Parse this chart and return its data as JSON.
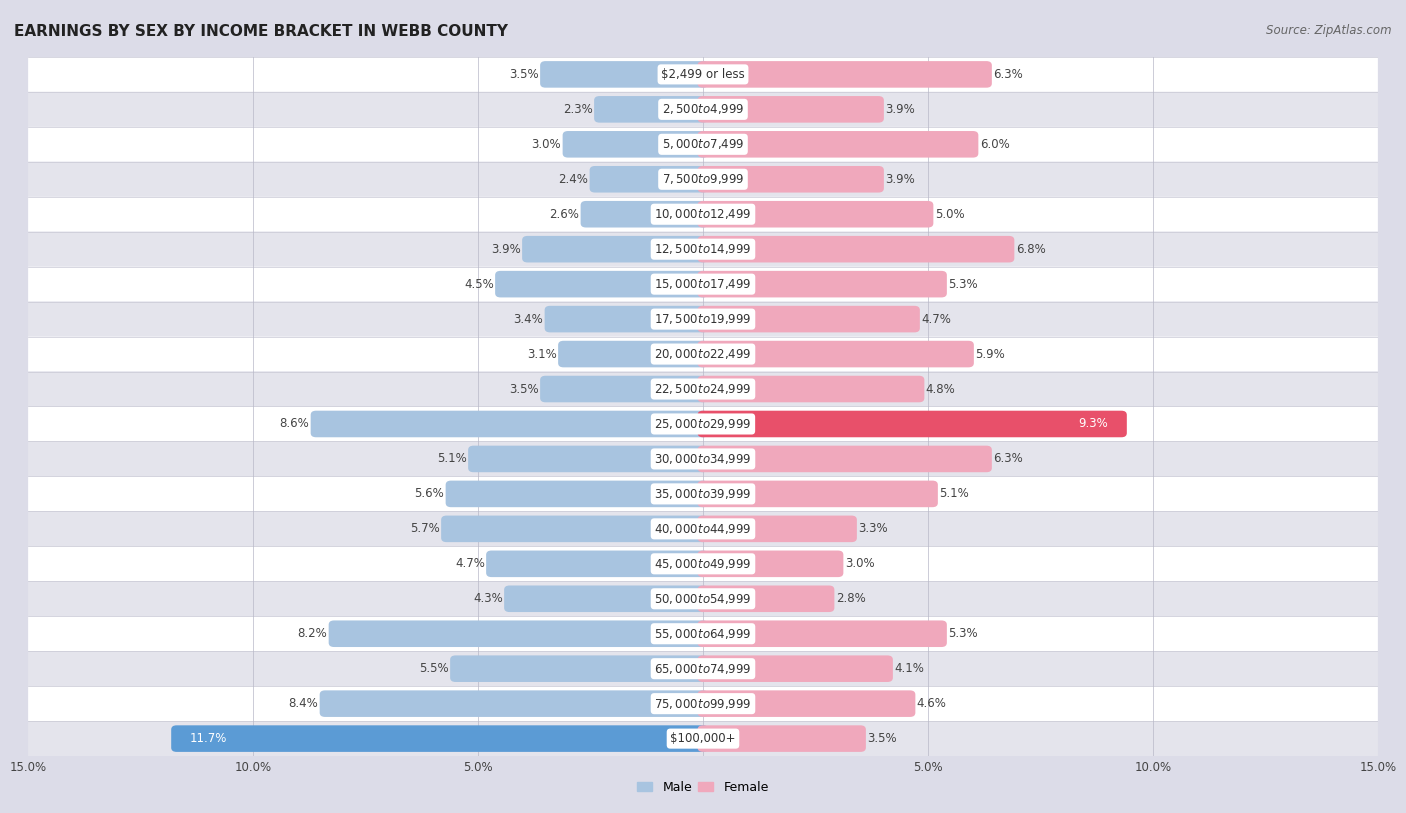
{
  "title": "EARNINGS BY SEX BY INCOME BRACKET IN WEBB COUNTY",
  "source": "Source: ZipAtlas.com",
  "categories": [
    "$2,499 or less",
    "$2,500 to $4,999",
    "$5,000 to $7,499",
    "$7,500 to $9,999",
    "$10,000 to $12,499",
    "$12,500 to $14,999",
    "$15,000 to $17,499",
    "$17,500 to $19,999",
    "$20,000 to $22,499",
    "$22,500 to $24,999",
    "$25,000 to $29,999",
    "$30,000 to $34,999",
    "$35,000 to $39,999",
    "$40,000 to $44,999",
    "$45,000 to $49,999",
    "$50,000 to $54,999",
    "$55,000 to $64,999",
    "$65,000 to $74,999",
    "$75,000 to $99,999",
    "$100,000+"
  ],
  "male_values": [
    3.5,
    2.3,
    3.0,
    2.4,
    2.6,
    3.9,
    4.5,
    3.4,
    3.1,
    3.5,
    8.6,
    5.1,
    5.6,
    5.7,
    4.7,
    4.3,
    8.2,
    5.5,
    8.4,
    11.7
  ],
  "female_values": [
    6.3,
    3.9,
    6.0,
    3.9,
    5.0,
    6.8,
    5.3,
    4.7,
    5.9,
    4.8,
    9.3,
    6.3,
    5.1,
    3.3,
    3.0,
    2.8,
    5.3,
    4.1,
    4.6,
    3.5
  ],
  "male_color": "#a8c4e0",
  "female_color": "#f0a8bc",
  "highlight_male_color": "#5b9bd5",
  "highlight_female_color": "#e8506a",
  "row_color_even": "#f0f0f5",
  "row_color_odd": "#e4e4ec",
  "bar_row_color": "#ffffff",
  "background_color": "#dcdce8",
  "xlim": 15.0,
  "title_fontsize": 11,
  "source_fontsize": 8.5,
  "label_fontsize": 8.5,
  "category_fontsize": 8.5,
  "tick_fontsize": 8.5
}
